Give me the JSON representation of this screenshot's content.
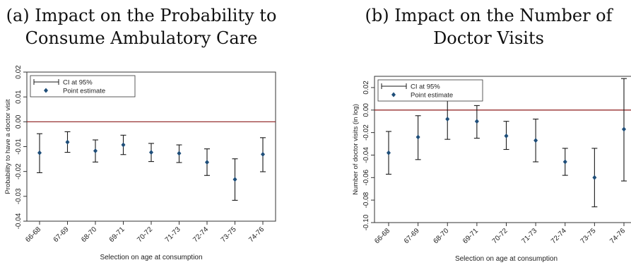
{
  "panels": [
    {
      "title_line1": "(a) Impact on the Probability to",
      "title_line2": "Consume Ambulatory Care"
    },
    {
      "title_line1": "(b) Impact on the Number of",
      "title_line2": "Doctor Visits"
    }
  ],
  "chart_data": [
    {
      "type": "scatter",
      "subtype": "point-estimate-with-95ci",
      "categories": [
        "66-68",
        "67-69",
        "68-70",
        "69-71",
        "70-72",
        "71-73",
        "72-74",
        "73-75",
        "74-76"
      ],
      "series": [
        {
          "name": "Point estimate",
          "values": [
            -0.0125,
            -0.0082,
            -0.0117,
            -0.0093,
            -0.0123,
            -0.0127,
            -0.0163,
            -0.0232,
            -0.0131
          ]
        },
        {
          "name": "CI at 95%",
          "lower": [
            -0.0205,
            -0.0123,
            -0.0162,
            -0.0132,
            -0.016,
            -0.0164,
            -0.0216,
            -0.0316,
            -0.0201
          ],
          "upper": [
            -0.0048,
            -0.004,
            -0.0073,
            -0.0054,
            -0.0087,
            -0.0093,
            -0.0109,
            -0.0149,
            -0.0064
          ]
        }
      ],
      "xlabel": "Selection on age at consumption",
      "ylabel": "Probability to have a doctor visit",
      "ylim": [
        -0.04,
        0.02
      ],
      "yticks": [
        0.02,
        0.01,
        0.0,
        -0.01,
        -0.02,
        -0.03,
        -0.04
      ],
      "ytick_labels": [
        "0.02",
        "0.01",
        "0.00",
        "-0.01",
        "-0.02",
        "-0.03",
        "-0.04"
      ],
      "reference_line": 0,
      "legend": [
        "CI at 95%",
        "Point estimate"
      ],
      "legend_position": "top-left",
      "colors": {
        "point": "#1f4e79",
        "ci": "#1a1a1a",
        "zero_line": "#8b1a1a",
        "frame": "#333333"
      },
      "grid": false
    },
    {
      "type": "scatter",
      "subtype": "point-estimate-with-95ci",
      "categories": [
        "66-68",
        "67-69",
        "68-70",
        "69-71",
        "70-72",
        "71-73",
        "72-74",
        "73-75",
        "74-76"
      ],
      "series": [
        {
          "name": "Point estimate",
          "values": [
            -0.038,
            -0.024,
            -0.008,
            -0.01,
            -0.023,
            -0.027,
            -0.046,
            -0.06,
            -0.017
          ]
        },
        {
          "name": "CI at 95%",
          "lower": [
            -0.057,
            -0.044,
            -0.026,
            -0.025,
            -0.035,
            -0.046,
            -0.058,
            -0.086,
            -0.063
          ],
          "upper": [
            -0.019,
            -0.005,
            0.009,
            0.004,
            -0.01,
            -0.008,
            -0.034,
            -0.034,
            0.028
          ]
        }
      ],
      "xlabel": "Selection on age at consumption",
      "ylabel": "Number of doctor visits (in log)",
      "ylim": [
        -0.1,
        0.03
      ],
      "yticks": [
        0.02,
        0.0,
        -0.02,
        -0.04,
        -0.06,
        -0.08,
        -0.1
      ],
      "ytick_labels": [
        "0.02",
        "0.00",
        "-0.02",
        "-0.04",
        "-0.06",
        "-0.08",
        "-0.10"
      ],
      "reference_line": 0,
      "legend": [
        "CI at 95%",
        "Point estimate"
      ],
      "legend_position": "top-left",
      "colors": {
        "point": "#1f4e79",
        "ci": "#1a1a1a",
        "zero_line": "#8b1a1a",
        "frame": "#333333"
      },
      "grid": false
    }
  ]
}
